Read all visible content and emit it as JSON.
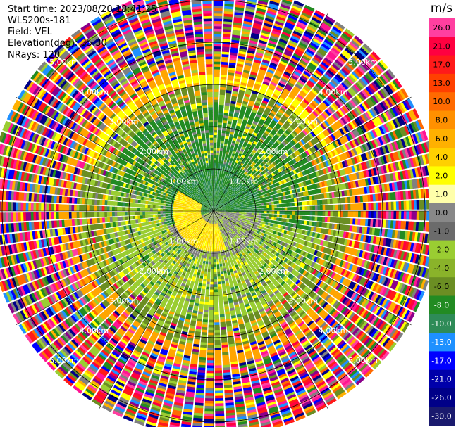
{
  "header": {
    "start_time": "Start time: 2023/08/20 18:41:25",
    "instrument": "WLS200s-181",
    "field": "Field: VEL",
    "elevation": "Elevation(deg): 35.30",
    "nrays": "NRays: 120"
  },
  "chart_data": {
    "type": "heatmap",
    "projection": "polar PPI",
    "field": "VEL",
    "nrays": 120,
    "range_rings_km": [
      1,
      2,
      3,
      4,
      5
    ],
    "ring_labels": [
      "1.00km",
      "2.00km",
      "3.00km",
      "4.00km",
      "5.00km"
    ],
    "max_range_km": 5.4,
    "colorbar": {
      "unit": "m/s",
      "tick_labels": [
        "26.0",
        "21.0",
        "17.0",
        "13.0",
        "10.0",
        "8.0",
        "6.0",
        "4.0",
        "2.0",
        "1.0",
        "0.0",
        "-1.0",
        "-2.0",
        "-4.0",
        "-6.0",
        "-8.0",
        "-10.0",
        "-13.0",
        "-17.0",
        "-21.0",
        "-26.0",
        "-30.0"
      ],
      "colors": [
        "#ff3fa0",
        "#ff0040",
        "#ff1a1a",
        "#ff4000",
        "#ff6a00",
        "#ff9000",
        "#ffb000",
        "#ffd000",
        "#ffff00",
        "#ffffaa",
        "#888888",
        "#6b6b6b",
        "#9acd32",
        "#8ab32a",
        "#6b8e23",
        "#228b22",
        "#2e8b57",
        "#1e90ff",
        "#0000ff",
        "#0000aa",
        "#000088",
        "#1a1a6e"
      ]
    },
    "near_field_colors": [
      "#228b22",
      "#2e8b57",
      "#6b8e23",
      "#9acd32",
      "#808080",
      "#d4c000",
      "#ffff00"
    ],
    "far_field_colors": [
      "#ff0040",
      "#ff3fa0",
      "#ff1493",
      "#ff6a00",
      "#ffb000",
      "#ffff00",
      "#0000ff",
      "#000088",
      "#1e90ff",
      "#228b22",
      "#6b8e23",
      "#9acd32",
      "#808080",
      "#ff1a1a",
      "#8b008b"
    ]
  }
}
